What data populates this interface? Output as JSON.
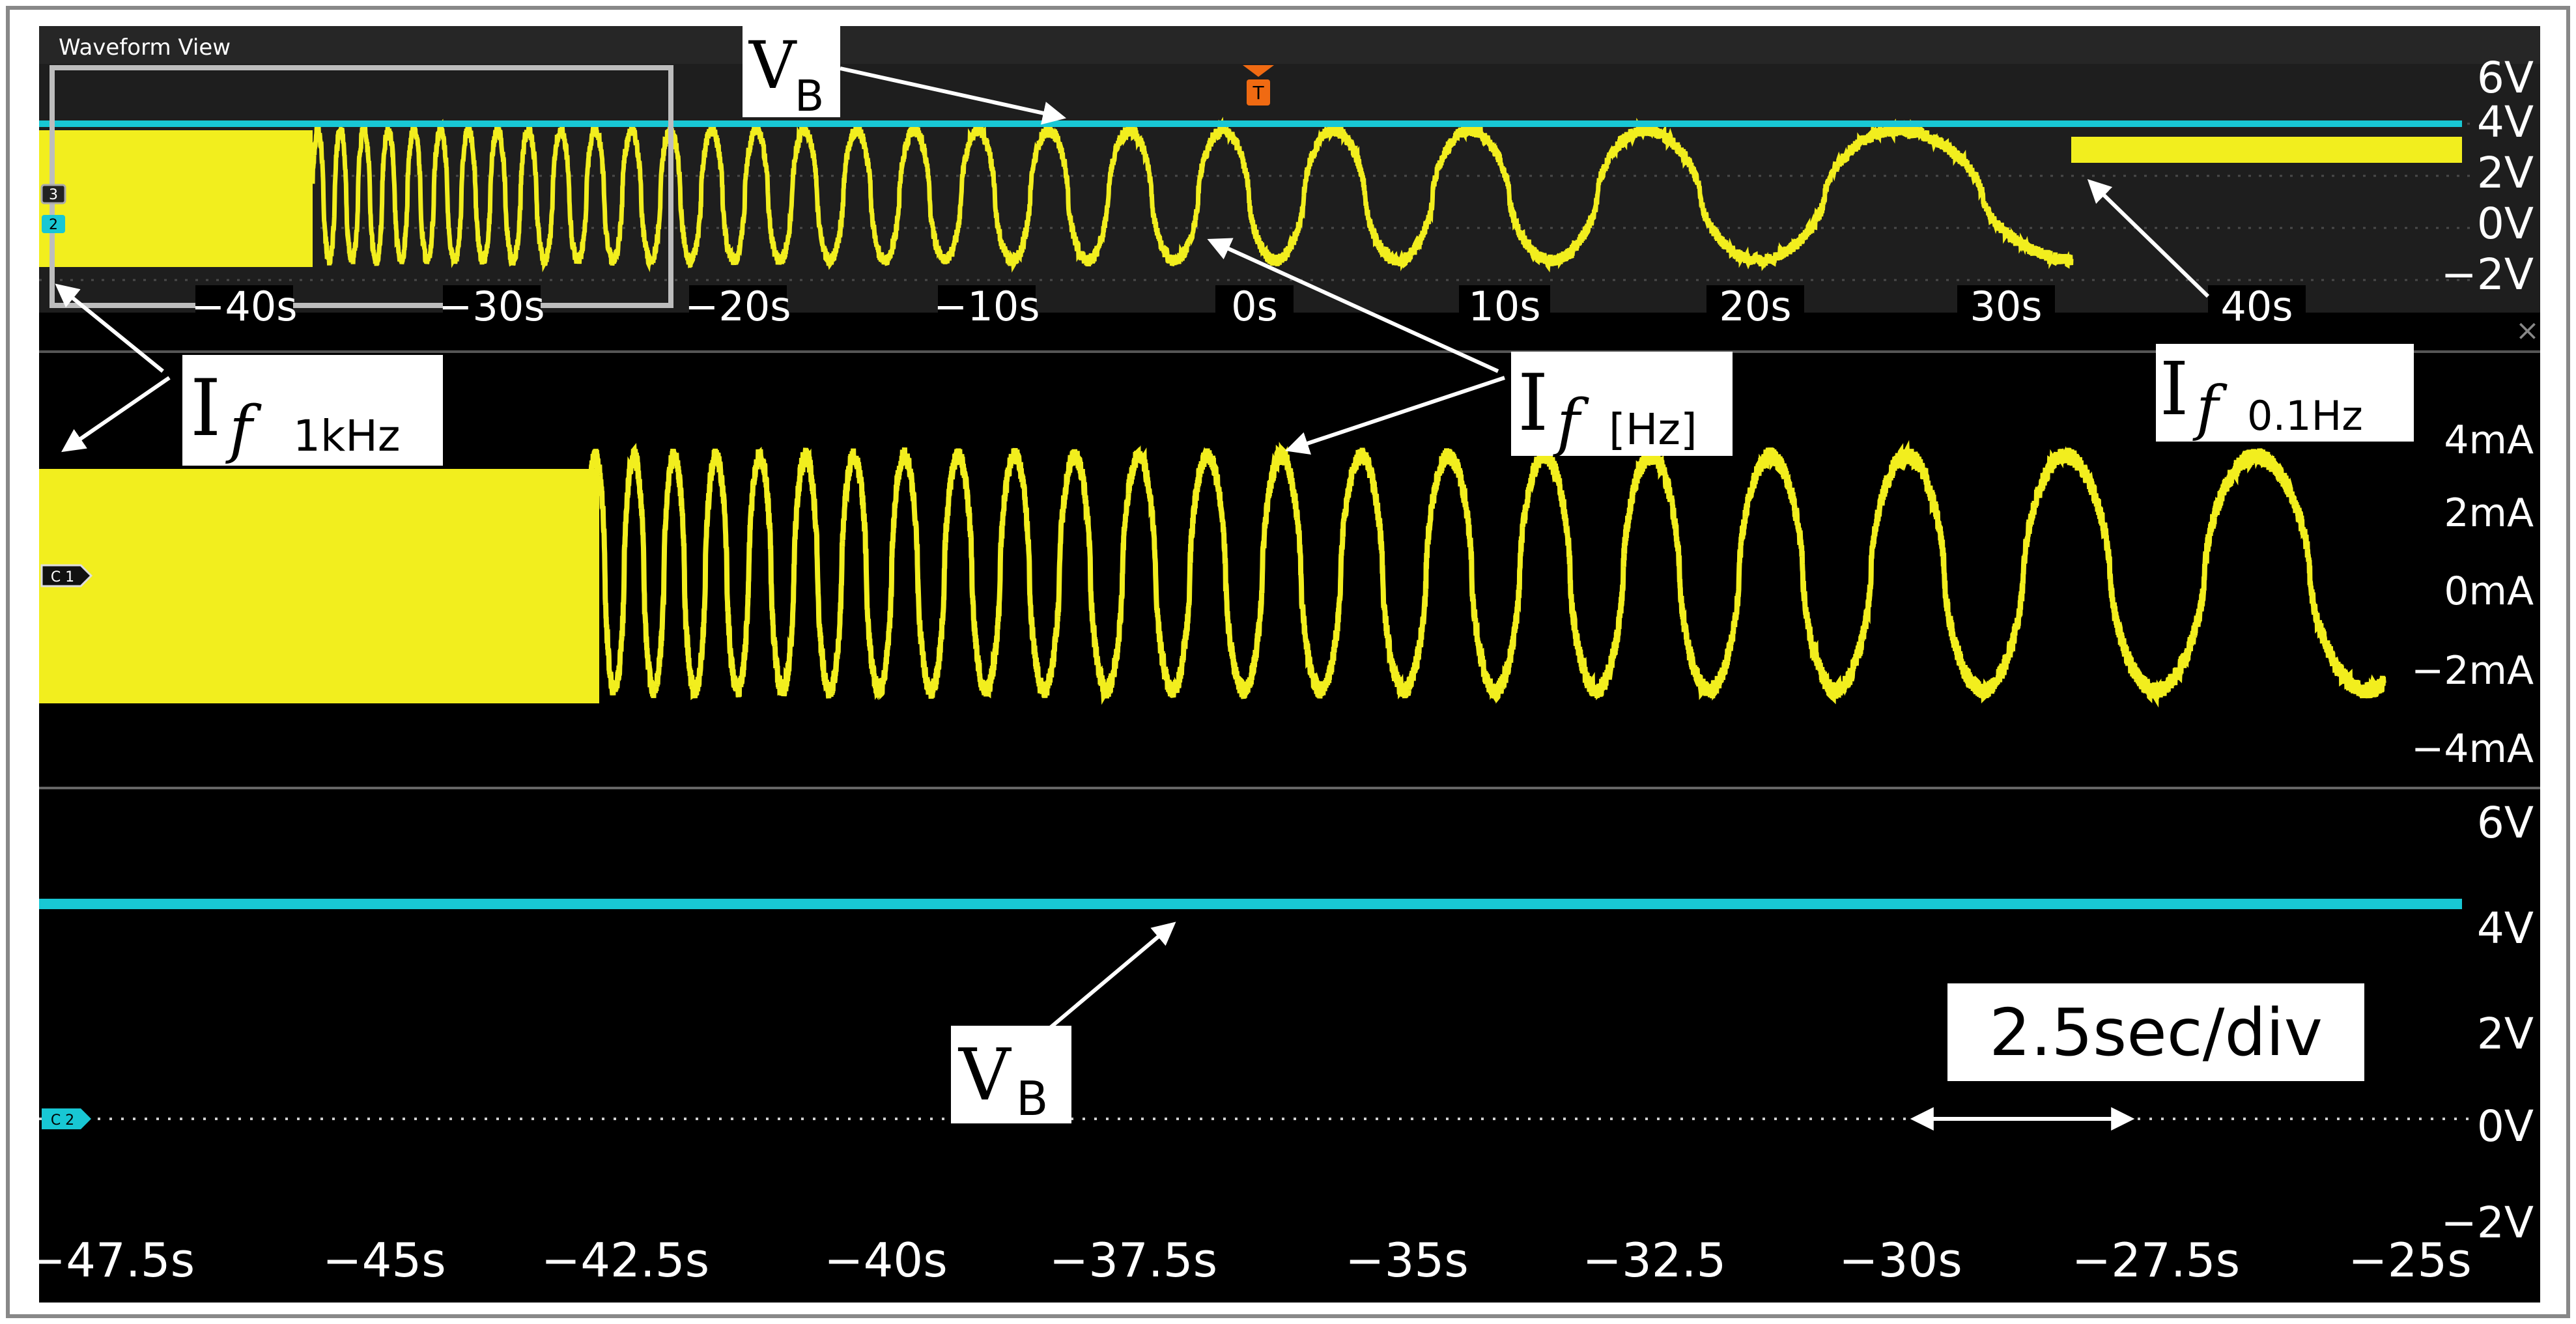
{
  "window": {
    "title": "Waveform View",
    "close_glyph": "×"
  },
  "colors": {
    "ch1": "#f2ee1e",
    "ch2": "#18c7d4",
    "background": "#000000",
    "panel": "#1c1c1c",
    "grid": "#4a4a4a",
    "trigger": "#f06a12"
  },
  "overview": {
    "trigger_label": "T",
    "time_labels": [
      "−40s",
      "−30s",
      "−20s",
      "−10s",
      "0s",
      "10s",
      "20s",
      "30s",
      "40s"
    ],
    "volt_labels": [
      "6V",
      "4V",
      "2V",
      "0V",
      "−2V"
    ],
    "markers": [
      "3",
      "2"
    ]
  },
  "current_panel": {
    "channel_tag": "C 1",
    "scale_labels": [
      "4mA",
      "2mA",
      "0mA",
      "−2mA",
      "−4mA"
    ]
  },
  "voltage_panel": {
    "channel_tag": "C 2",
    "scale_labels": [
      "6V",
      "4V",
      "2V",
      "0V",
      "−2V"
    ]
  },
  "time_axis": [
    "−47.5s",
    "−45s",
    "−42.5s",
    "−40s",
    "−37.5s",
    "−35s",
    "−32.5",
    "−30s",
    "−27.5s",
    "−25s"
  ],
  "annotations": {
    "vb_top": {
      "main": "V",
      "sub": "B"
    },
    "vb_bottom": {
      "main": "V",
      "sub": "B"
    },
    "if_1khz": {
      "main": "I",
      "var": "f",
      "sub": "1kHz"
    },
    "if_hz": {
      "main": "I",
      "var": "f",
      "sub": "[Hz]"
    },
    "if_01hz": {
      "main": "I",
      "var": "f",
      "sub": "0.1Hz"
    },
    "timebase": "2.5sec/div"
  }
}
